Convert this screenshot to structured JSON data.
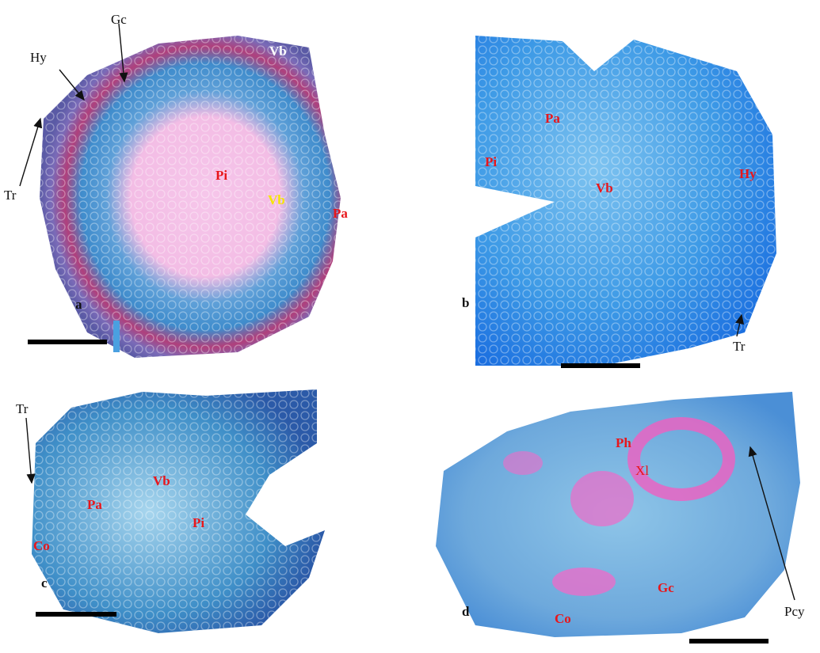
{
  "panels": [
    {
      "letter": "a",
      "labels": [
        "Gc",
        "Hy",
        "Tr",
        "Vb",
        "Pi",
        "Vb",
        "Pa"
      ]
    },
    {
      "letter": "b",
      "labels": [
        "Pa",
        "Pi",
        "Vb",
        "Hy",
        "Tr"
      ]
    },
    {
      "letter": "c",
      "labels": [
        "Tr",
        "Vb",
        "Pa",
        "Pi",
        "Co"
      ]
    },
    {
      "letter": "d",
      "labels": [
        "Ph",
        "Xl",
        "Gc",
        "Pcy",
        "Co"
      ]
    }
  ]
}
